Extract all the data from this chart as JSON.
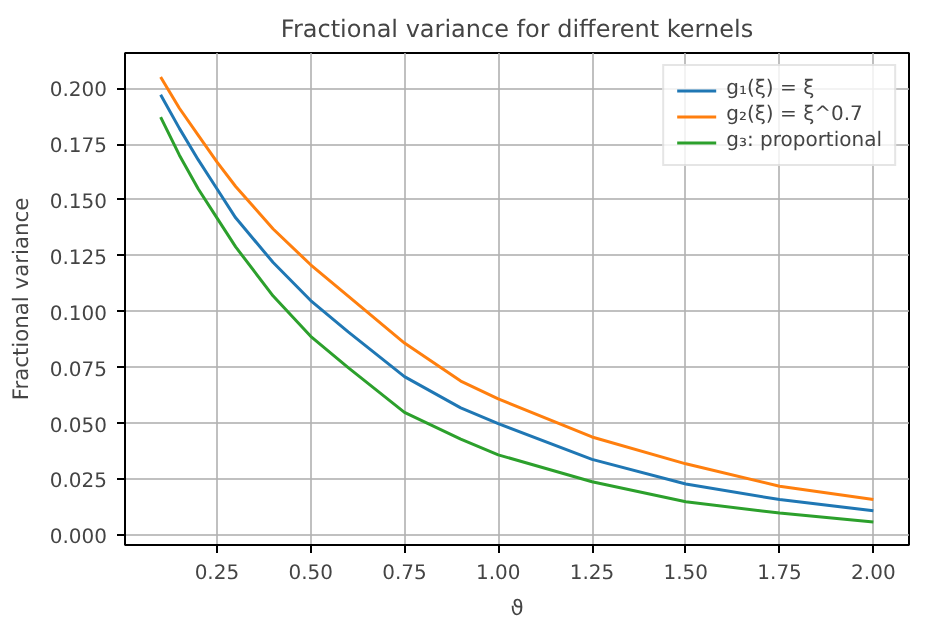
{
  "chart_data": {
    "type": "line",
    "title": "Fractional variance for different kernels",
    "xlabel": "ϑ",
    "ylabel": "Fractional variance",
    "x": [
      0.1,
      0.15,
      0.2,
      0.25,
      0.3,
      0.4,
      0.5,
      0.6,
      0.75,
      0.9,
      1.0,
      1.25,
      1.5,
      1.75,
      2.0
    ],
    "series": [
      {
        "name": "g₁(ξ) = ξ",
        "color": "#1f77b4",
        "values": [
          0.197,
          0.182,
          0.168,
          0.155,
          0.142,
          0.122,
          0.105,
          0.091,
          0.071,
          0.057,
          0.05,
          0.034,
          0.023,
          0.016,
          0.011
        ]
      },
      {
        "name": "g₂(ξ) = ξ^0.7",
        "color": "#ff7f0e",
        "values": [
          0.205,
          0.191,
          0.179,
          0.167,
          0.156,
          0.137,
          0.121,
          0.107,
          0.086,
          0.069,
          0.061,
          0.044,
          0.032,
          0.022,
          0.016
        ]
      },
      {
        "name": "g₃: proportional",
        "color": "#2ca02c",
        "values": [
          0.187,
          0.17,
          0.155,
          0.142,
          0.129,
          0.107,
          0.089,
          0.075,
          0.055,
          0.043,
          0.036,
          0.024,
          0.015,
          0.01,
          0.006
        ]
      }
    ],
    "xlim": [
      0.005,
      2.095
    ],
    "ylim": [
      -0.0043,
      0.2157
    ],
    "xticks": [
      {
        "value": 0.25,
        "label": "0.25"
      },
      {
        "value": 0.5,
        "label": "0.50"
      },
      {
        "value": 0.75,
        "label": "0.75"
      },
      {
        "value": 1.0,
        "label": "1.00"
      },
      {
        "value": 1.25,
        "label": "1.25"
      },
      {
        "value": 1.5,
        "label": "1.50"
      },
      {
        "value": 1.75,
        "label": "1.75"
      },
      {
        "value": 2.0,
        "label": "2.00"
      }
    ],
    "yticks": [
      {
        "value": 0,
        "label": "0.000"
      },
      {
        "value": 0.025,
        "label": "0.025"
      },
      {
        "value": 0.05,
        "label": "0.050"
      },
      {
        "value": 0.075,
        "label": "0.075"
      },
      {
        "value": 0.1,
        "label": "0.100"
      },
      {
        "value": 0.125,
        "label": "0.125"
      },
      {
        "value": 0.15,
        "label": "0.150"
      },
      {
        "value": 0.175,
        "label": "0.175"
      },
      {
        "value": 0.2,
        "label": "0.200"
      }
    ],
    "grid": true,
    "legend": "top right",
    "marker": "none",
    "line_style": "solid"
  }
}
